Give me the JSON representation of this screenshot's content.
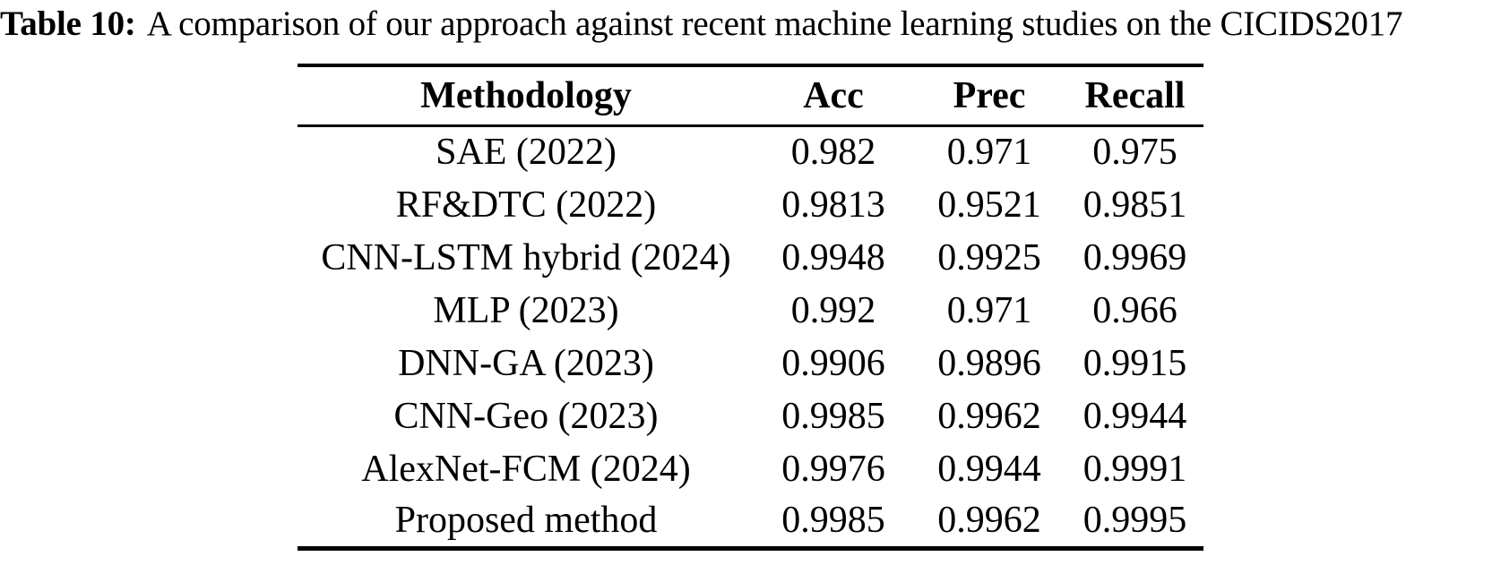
{
  "caption": {
    "label": "Table 10:",
    "text": "A comparison of our approach against recent machine learning studies on the CICIDS2017"
  },
  "table": {
    "columns": [
      "Methodology",
      "Acc",
      "Prec",
      "Recall"
    ],
    "rows": [
      {
        "methodology": "SAE (2022)",
        "acc": "0.982",
        "prec": "0.971",
        "recall": "0.975"
      },
      {
        "methodology": "RF&DTC (2022)",
        "acc": "0.9813",
        "prec": "0.9521",
        "recall": "0.9851"
      },
      {
        "methodology": "CNN-LSTM hybrid (2024)",
        "acc": "0.9948",
        "prec": "0.9925",
        "recall": "0.9969"
      },
      {
        "methodology": "MLP (2023)",
        "acc": "0.992",
        "prec": "0.971",
        "recall": "0.966"
      },
      {
        "methodology": "DNN-GA (2023)",
        "acc": "0.9906",
        "prec": "0.9896",
        "recall": "0.9915"
      },
      {
        "methodology": "CNN-Geo (2023)",
        "acc": "0.9985",
        "prec": "0.9962",
        "recall": "0.9944"
      },
      {
        "methodology": "AlexNet-FCM (2024)",
        "acc": "0.9976",
        "prec": "0.9944",
        "recall": "0.9991"
      },
      {
        "methodology": "Proposed method",
        "acc": "0.9985",
        "prec": "0.9962",
        "recall": "0.9995"
      }
    ]
  },
  "colors": {
    "text": "#000000",
    "background": "#ffffff",
    "rule": "#000000"
  }
}
